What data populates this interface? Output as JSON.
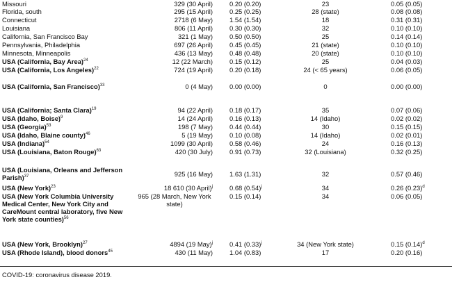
{
  "rows": [
    {
      "loc": "Missouri",
      "bold": false,
      "ref": "",
      "n": "329 (30 April)",
      "nsup": "",
      "rate": "0.20 (0.20)",
      "rsup": "",
      "age": "23",
      "ifr": "0.05 (0.05)",
      "isup": ""
    },
    {
      "loc": "Florida, south",
      "bold": false,
      "ref": "",
      "n": "295 (15 April)",
      "nsup": "",
      "rate": "0.25 (0.25)",
      "rsup": "",
      "age": "28 (state)",
      "ifr": "0.08 (0.08)",
      "isup": ""
    },
    {
      "loc": "Connecticut",
      "bold": false,
      "ref": "",
      "n": "2718 (6 May)",
      "nsup": "",
      "rate": "1.54 (1.54)",
      "rsup": "",
      "age": "18",
      "ifr": "0.31 (0.31)",
      "isup": ""
    },
    {
      "loc": "Louisiana",
      "bold": false,
      "ref": "",
      "n": "806 (11 April)",
      "nsup": "",
      "rate": "0.30 (0.30)",
      "rsup": "",
      "age": "32",
      "ifr": "0.10 (0.10)",
      "isup": ""
    },
    {
      "loc": "California, San Francisco Bay",
      "bold": false,
      "ref": "",
      "n": "321 (1 May)",
      "nsup": "",
      "rate": "0.50 (0.50)",
      "rsup": "",
      "age": "25",
      "ifr": "0.14 (0.14)",
      "isup": ""
    },
    {
      "loc": "Pennsylvania, Philadelphia",
      "bold": false,
      "ref": "",
      "n": "697 (26 April)",
      "nsup": "",
      "rate": "0.45 (0.45)",
      "rsup": "",
      "age": "21 (state)",
      "ifr": "0.10 (0.10)",
      "isup": ""
    },
    {
      "loc": "Minnesota, Minneapolis",
      "bold": false,
      "ref": "",
      "n": "436 (13 May)",
      "nsup": "",
      "rate": "0.48 (0.48)",
      "rsup": "",
      "age": "20 (state)",
      "ifr": "0.10 (0.10)",
      "isup": ""
    },
    {
      "loc": "USA (California, Bay Area)",
      "bold": true,
      "ref": "24",
      "n": "12 (22 March)",
      "nsup": "",
      "rate": "0.15 (0.12)",
      "rsup": "",
      "age": "25",
      "ifr": "0.04 (0.03)",
      "isup": ""
    },
    {
      "loc": "USA (California, Los Angeles)",
      "bold": true,
      "ref": "22",
      "n": "724 (19 April)",
      "nsup": "",
      "rate": "0.20 (0.18)",
      "rsup": "",
      "age": "24 (< 65 years)",
      "ifr": "0.06 (0.05)",
      "isup": ""
    },
    {
      "loc": "USA (California, San Francisco)",
      "bold": true,
      "ref": "33",
      "n": "0 (4 May)",
      "nsup": "",
      "rate": "0.00 (0.00)",
      "rsup": "",
      "age": "0",
      "ifr": "0.00 (0.00)",
      "isup": ""
    },
    {
      "loc": "USA (California; Santa Clara)",
      "bold": true,
      "ref": "19",
      "n": "94 (22 April)",
      "nsup": "",
      "rate": "0.18 (0.17)",
      "rsup": "",
      "age": "35",
      "ifr": "0.07 (0.06)",
      "isup": ""
    },
    {
      "loc": "USA (Idaho, Boise)",
      "bold": true,
      "ref": "9",
      "n": "14 (24 April)",
      "nsup": "",
      "rate": "0.16 (0.13)",
      "rsup": "",
      "age": "14 (Idaho)",
      "ifr": "0.02 (0.02)",
      "isup": ""
    },
    {
      "loc": "USA (Georgia)",
      "bold": true,
      "ref": "53",
      "n": "198 (7 May)",
      "nsup": "",
      "rate": "0.44 (0.44)",
      "rsup": "",
      "age": "30",
      "ifr": "0.15 (0.15)",
      "isup": ""
    },
    {
      "loc": "USA (Idaho, Blaine county)",
      "bold": true,
      "ref": "46",
      "n": "5 (19 May)",
      "nsup": "",
      "rate": "0.10 (0.08)",
      "rsup": "",
      "age": "14 (Idaho)",
      "ifr": "0.02 (0.01)",
      "isup": ""
    },
    {
      "loc": "USA (Indiana)",
      "bold": true,
      "ref": "54",
      "n": "1099 (30 April)",
      "nsup": "",
      "rate": "0.58 (0.46)",
      "rsup": "",
      "age": "24",
      "ifr": "0.16 (0.13)",
      "isup": ""
    },
    {
      "loc": "USA (Louisiana, Baton Rouge)",
      "bold": true,
      "ref": "63",
      "n": "420 (30 July)",
      "nsup": "",
      "rate": "0.91 (0.73)",
      "rsup": "",
      "age": "32 (Louisiana)",
      "ifr": "0.32 (0.25)",
      "isup": ""
    },
    {
      "loc": "USA (Louisiana, Orleans and Jefferson Parish)",
      "bold": true,
      "ref": "37",
      "n": "925 (16 May)",
      "nsup": "",
      "rate": "1.63 (1.31)",
      "rsup": "",
      "age": "32",
      "ifr": "0.57 (0.46)",
      "isup": ""
    },
    {
      "loc": "USA (New York)",
      "bold": true,
      "ref": "23",
      "n": "18 610 (30 April)",
      "nsup": "j",
      "rate": "0.68 (0.54)",
      "rsup": "j",
      "age": "34",
      "ifr": "0.26 (0.23)",
      "isup": "d"
    },
    {
      "loc": "USA (New York Columbia University Medical Center, New York City and CareMount central laboratory, five New York state counties)",
      "bold": true,
      "ref": "56",
      "n": "965 (28 March, New York state)",
      "nsup": "",
      "rate": "0.15 (0.14)",
      "rsup": "",
      "age": "34",
      "ifr": "0.06 (0.05)",
      "isup": ""
    },
    {
      "loc": "USA (New York, Brooklyn)",
      "bold": true,
      "ref": "27",
      "n": "4894 (19 May)",
      "nsup": "j",
      "rate": "0.41 (0.33)",
      "rsup": "j",
      "age": "34 (New York state)",
      "ifr": "0.15 (0.14)",
      "isup": "d"
    },
    {
      "loc": "USA (Rhode Island), blood donors",
      "bold": true,
      "ref": "45",
      "n": "430 (11 May)",
      "nsup": "",
      "rate": "1.04 (0.83)",
      "rsup": "",
      "age": "17",
      "ifr": "0.20 (0.16)",
      "isup": ""
    }
  ],
  "footnote": "COVID-19: coronavirus disease 2019."
}
